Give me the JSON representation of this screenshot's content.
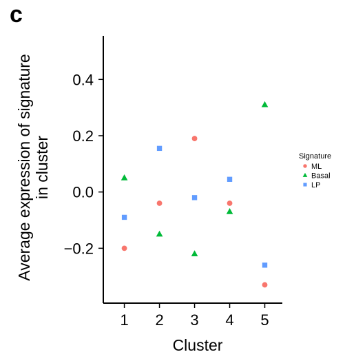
{
  "panel_label": "c",
  "chart_data": {
    "type": "scatter",
    "xlabel": "Cluster",
    "ylabel_lines": [
      "Average expression of signature",
      "in cluster"
    ],
    "x": [
      1,
      2,
      3,
      4,
      5
    ],
    "x_ticks": [
      "1",
      "2",
      "3",
      "4",
      "5"
    ],
    "y_ticks": [
      {
        "value": 0.4,
        "label": "0.4"
      },
      {
        "value": 0.2,
        "label": "0.2"
      },
      {
        "value": 0.0,
        "label": "0.0"
      },
      {
        "value": -0.2,
        "label": "−0.2"
      }
    ],
    "xlim": [
      0.4,
      5.5
    ],
    "ylim": [
      -0.395,
      0.555
    ],
    "grid": false,
    "legend": {
      "title": "Signature",
      "placement": "right"
    },
    "series": [
      {
        "name": "ML",
        "marker": "circle",
        "color": "#F8766D",
        "values": [
          -0.2,
          -0.04,
          0.19,
          -0.04,
          -0.33
        ]
      },
      {
        "name": "Basal",
        "marker": "triangle",
        "color": "#00BA38",
        "values": [
          0.05,
          -0.15,
          -0.22,
          -0.07,
          0.31
        ]
      },
      {
        "name": "LP",
        "marker": "square",
        "color": "#619CFF",
        "values": [
          -0.09,
          0.155,
          -0.02,
          0.045,
          -0.26
        ]
      }
    ]
  }
}
